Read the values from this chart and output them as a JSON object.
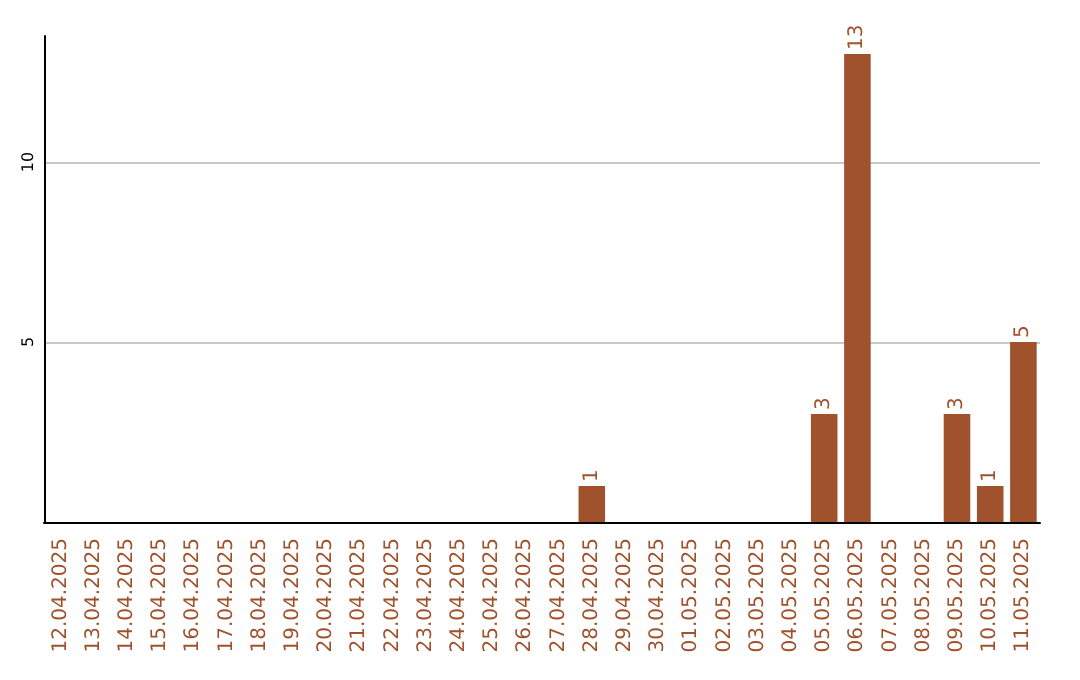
{
  "chart_data": {
    "type": "bar",
    "categories": [
      "12.04.2025",
      "13.04.2025",
      "14.04.2025",
      "15.04.2025",
      "16.04.2025",
      "17.04.2025",
      "18.04.2025",
      "19.04.2025",
      "20.04.2025",
      "21.04.2025",
      "22.04.2025",
      "23.04.2025",
      "24.04.2025",
      "25.04.2025",
      "26.04.2025",
      "27.04.2025",
      "28.04.2025",
      "29.04.2025",
      "30.04.2025",
      "01.05.2025",
      "02.05.2025",
      "03.05.2025",
      "04.05.2025",
      "05.05.2025",
      "06.05.2025",
      "07.05.2025",
      "08.05.2025",
      "09.05.2025",
      "10.05.2025",
      "11.05.2025"
    ],
    "values": [
      0,
      0,
      0,
      0,
      0,
      0,
      0,
      0,
      0,
      0,
      0,
      0,
      0,
      0,
      0,
      0,
      1,
      0,
      0,
      0,
      0,
      0,
      0,
      3,
      13,
      0,
      0,
      3,
      1,
      5
    ],
    "value_labels": [
      null,
      null,
      null,
      null,
      null,
      null,
      null,
      null,
      null,
      null,
      null,
      null,
      null,
      null,
      null,
      null,
      "1",
      null,
      null,
      null,
      null,
      null,
      null,
      "3",
      "13",
      null,
      null,
      "3",
      "1",
      "5"
    ],
    "color": "#a0522d",
    "ylim": [
      0,
      13.5
    ],
    "yticks": [
      5,
      10
    ],
    "grid": "y"
  }
}
